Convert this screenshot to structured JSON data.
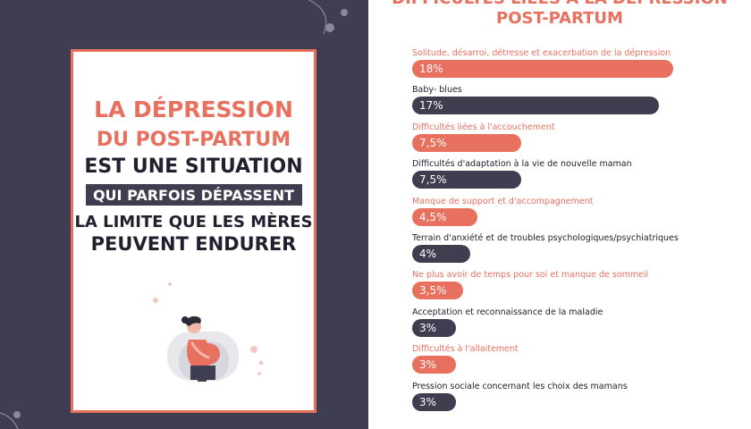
{
  "poster": {
    "line1": "LA DÉPRESSION",
    "line2": "DU POST-PARTUM",
    "line3": "EST UNE SITUATION",
    "line4": "QUI PARFOIS DÉPASSENT",
    "line5": "LA LIMITE QUE LES MÈRES",
    "line6": "PEUVENT ENDURER"
  },
  "colors": {
    "accent": "#e8705e",
    "dark": "#3f3d50",
    "text_dark": "#22202e"
  },
  "chart_data": {
    "type": "bar",
    "orientation": "horizontal",
    "title_line1": "DIFFICULTÉS LIÉES À LA DÉPRESSION",
    "title_line2": "POST-PARTUM",
    "xlim": [
      0,
      18
    ],
    "grid": false,
    "categories": [
      "Solitude, désarroi, détresse et exacerbation de la dépression",
      "Baby- blues",
      "Difficultés liées à l'accouchement",
      "Difficultés d'adaptation à la vie de nouvelle maman",
      "Manque de support et d'accompagnement",
      "Terrain d'anxiété et de troubles psychologiques/psychiatriques",
      "Ne plus avoir de temps pour soi et manque de sommeil",
      "Acceptation et reconnaissance de la maladie",
      "Difficultés à l'allaitement",
      "Pression sociale concernant les choix des mamans"
    ],
    "values": [
      18,
      17,
      7.5,
      7.5,
      4.5,
      4,
      3.5,
      3,
      3,
      3
    ],
    "value_labels": [
      "18%",
      "17%",
      "7,5%",
      "7,5%",
      "4,5%",
      "4%",
      "3,5%",
      "3%",
      "3%",
      "3%"
    ],
    "bar_colors": [
      "#e8705e",
      "#3f3d50",
      "#e8705e",
      "#3f3d50",
      "#e8705e",
      "#3f3d50",
      "#e8705e",
      "#3f3d50",
      "#e8705e",
      "#3f3d50"
    ]
  }
}
